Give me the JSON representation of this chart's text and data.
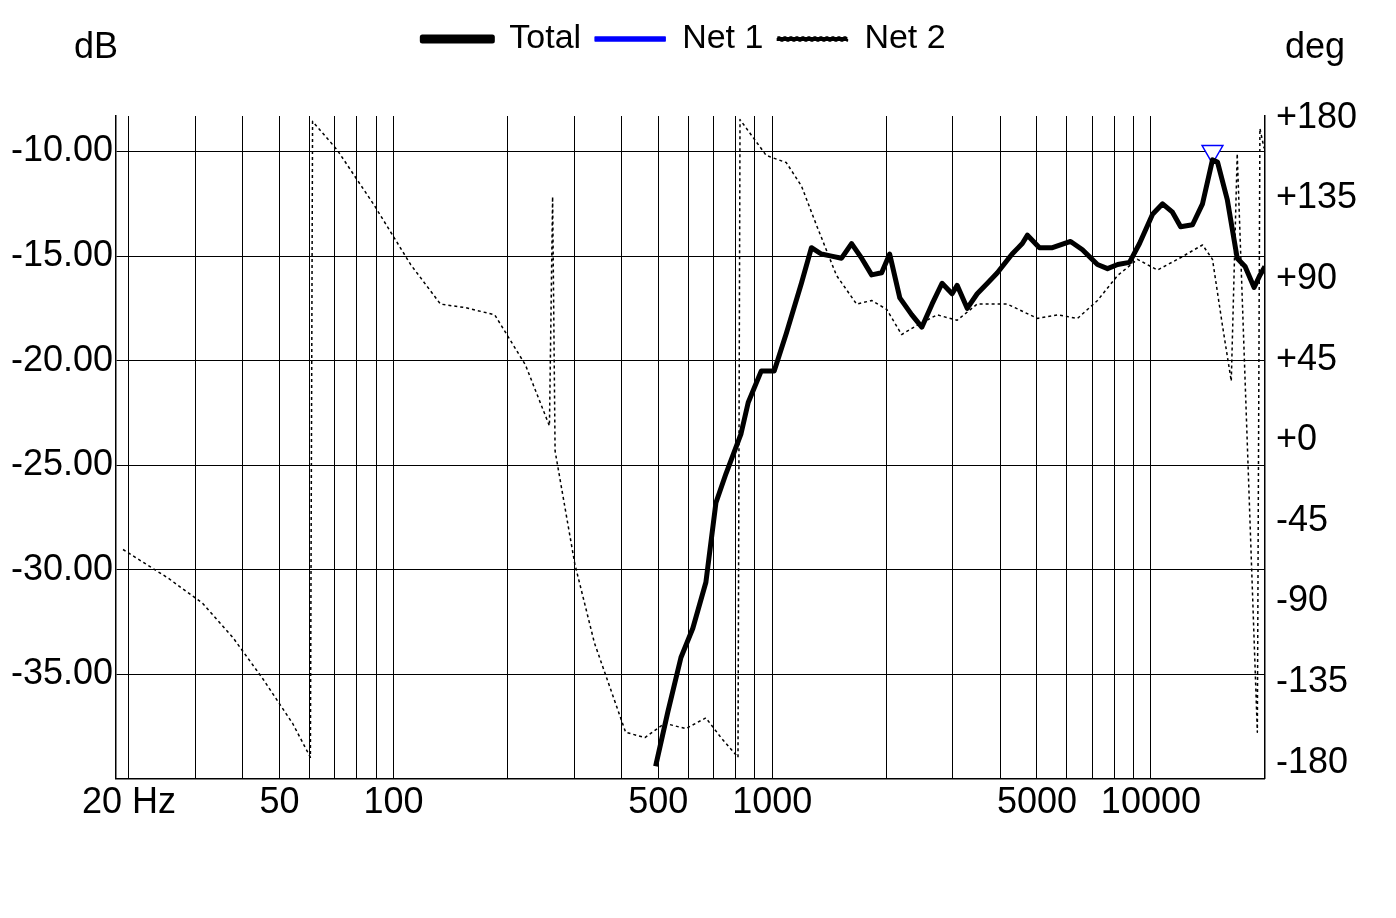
{
  "chart_data": {
    "type": "line",
    "ylabel": "dB",
    "y2label": "deg",
    "log": "x",
    "grid": true,
    "legend": "top",
    "xlim": [
      18.5,
      20000
    ],
    "xticks": [
      {
        "value": 20,
        "label": "20 Hz"
      },
      {
        "value": 30,
        "label": null
      },
      {
        "value": 40,
        "label": null
      },
      50,
      {
        "value": 60,
        "label": null
      },
      {
        "value": 70,
        "label": null
      },
      {
        "value": 80,
        "label": null
      },
      {
        "value": 90,
        "label": null
      },
      100,
      {
        "value": 200,
        "label": null
      },
      {
        "value": 300,
        "label": null
      },
      {
        "value": 400,
        "label": null
      },
      500,
      {
        "value": 600,
        "label": null
      },
      {
        "value": 700,
        "label": null
      },
      {
        "value": 800,
        "label": null
      },
      {
        "value": 900,
        "label": null
      },
      1000,
      {
        "value": 2000,
        "label": null
      },
      {
        "value": 3000,
        "label": null
      },
      {
        "value": 4000,
        "label": null
      },
      5000,
      {
        "value": 6000,
        "label": null
      },
      {
        "value": 7000,
        "label": null
      },
      {
        "value": 8000,
        "label": null
      },
      {
        "value": 9000,
        "label": null
      },
      10000,
      {
        "value": 20000,
        "label": null
      }
    ],
    "ylim": [
      -40,
      -8.3
    ],
    "yticks": [
      {
        "value": -35,
        "label": "-35.00"
      },
      {
        "value": -30,
        "label": "-30.00"
      },
      {
        "value": -25,
        "label": "-25.00"
      },
      {
        "value": -20,
        "label": "-20.00"
      },
      {
        "value": -15,
        "label": "-15.00"
      },
      {
        "value": -10,
        "label": "-10.00"
      }
    ],
    "y2lim": [
      -189,
      181
    ],
    "y2ticks": [
      -180,
      -135,
      -90,
      -45,
      {
        "value": 0,
        "label": "+0"
      },
      {
        "value": 45,
        "label": "+45"
      },
      {
        "value": 90,
        "label": "+90"
      },
      {
        "value": 135,
        "label": "+135"
      },
      {
        "value": 180,
        "label": "+180"
      }
    ],
    "series": [
      {
        "name": "Total",
        "color": "#000000",
        "marker": "none",
        "line_style": "solid",
        "x": [
          492,
          530,
          574,
          617,
          668,
          710,
          755,
          827,
          864,
          935,
          1012,
          1089,
          1194,
          1269,
          1348,
          1434,
          1524,
          1620,
          1722,
          1830,
          1945,
          2042,
          2172,
          2334,
          2483,
          2642,
          2808,
          2985,
          3078,
          3272,
          3477,
          3700,
          3931,
          4300,
          4575,
          4720,
          5077,
          5495,
          6135,
          6595,
          7225,
          7680,
          8170,
          8780,
          9330,
          10100,
          10735,
          11400,
          11980,
          12880,
          13685,
          14540,
          14990,
          15910,
          16900,
          17730,
          18730,
          19420,
          20000
        ],
        "values": [
          -39.4,
          -36.8,
          -34.2,
          -32.8,
          -30.6,
          -26.8,
          -25.4,
          -23.5,
          -22.0,
          -20.5,
          -20.5,
          -18.7,
          -16.3,
          -14.6,
          -14.9,
          -15.0,
          -15.1,
          -14.4,
          -15.1,
          -15.9,
          -15.8,
          -14.9,
          -17.0,
          -17.8,
          -18.4,
          -17.3,
          -16.3,
          -16.8,
          -16.4,
          -17.5,
          -16.8,
          -16.3,
          -15.8,
          -14.9,
          -14.4,
          -14.0,
          -14.6,
          -14.6,
          -14.3,
          -14.7,
          -15.4,
          -15.6,
          -15.4,
          -15.3,
          -14.4,
          -13.0,
          -12.5,
          -12.9,
          -13.6,
          -13.5,
          -12.5,
          -10.4,
          -10.5,
          -12.3,
          -15.1,
          -15.5,
          -16.5,
          -15.9,
          -15.5
        ]
      },
      {
        "name": "Net 1",
        "color": "#0000ff",
        "marker": "triangle",
        "line_style": "solid",
        "x": [
          14540
        ],
        "values": [
          -10.0
        ]
      },
      {
        "name": "Net 2",
        "color": "#000000",
        "marker": "none",
        "line_style": "dotted",
        "axis": "y2",
        "x": [
          19.3,
          25.4,
          31.3,
          37.6,
          45.1,
          54.1,
          60.3,
          61.1,
          71,
          89,
          111,
          133,
          155,
          185,
          223,
          258,
          263,
          267,
          301,
          339,
          410,
          461,
          520,
          591,
          668,
          732,
          812,
          822,
          964,
          1089,
          1194,
          1309,
          1478,
          1670,
          1830,
          2006,
          2196,
          2405,
          2724,
          3078,
          3477,
          4176,
          5016,
          5665,
          6400,
          7225,
          8170,
          9215,
          10410,
          11760,
          13685,
          14540,
          15450,
          16300,
          16900,
          19100,
          19400,
          19900
        ],
        "values": [
          -61,
          -77,
          -91,
          -110,
          -133,
          -158,
          -177,
          178,
          162,
          131,
          98,
          76,
          74,
          70,
          42,
          8,
          136,
          -6,
          -69,
          -113,
          -163,
          -166,
          -158,
          -161,
          -155,
          -166,
          -177,
          179,
          159,
          155,
          142,
          120,
          92,
          76,
          78,
          73,
          59,
          64,
          70,
          67,
          76,
          76,
          68,
          70,
          68,
          78,
          92,
          101,
          95,
          101,
          109,
          101,
          64,
          33,
          160,
          -163,
          174,
          163
        ]
      }
    ]
  }
}
